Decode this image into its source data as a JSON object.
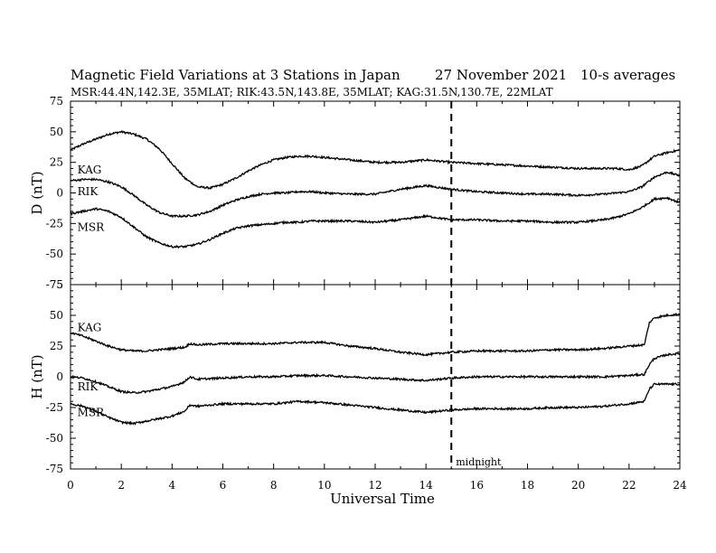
{
  "chart_data": {
    "type": "line",
    "title": "Magnetic Field Variations at 3 Stations in Japan",
    "date": "27 November 2021",
    "averaging": "10-s averages",
    "subtitle": "MSR:44.4N,142.3E, 35MLAT;  RIK:43.5N,143.8E, 35MLAT;  KAG:31.5N,130.7E, 22MLAT",
    "xlabel": "Universal Time",
    "xlim": [
      0,
      24
    ],
    "xticks": [
      "0",
      "2",
      "4",
      "6",
      "8",
      "10",
      "12",
      "14",
      "16",
      "18",
      "20",
      "22",
      "24"
    ],
    "annotation": {
      "x": 15,
      "text": "midnight"
    },
    "panels": [
      {
        "ylabel": "D (nT)",
        "ylim": [
          -75,
          75
        ],
        "yticks": [
          "75",
          "50",
          "25",
          "0",
          "-25",
          "-50",
          "-75"
        ],
        "series": [
          {
            "name": "KAG",
            "label_at": [
              0.2,
              19
            ],
            "x": [
              0,
              0.5,
              1,
              1.5,
              2,
              2.5,
              3,
              3.5,
              4,
              4.5,
              5,
              5.5,
              6,
              6.5,
              7,
              7.5,
              8,
              8.5,
              9,
              9.5,
              10,
              11,
              12,
              13,
              14,
              15,
              16,
              17,
              18,
              19,
              20,
              21,
              21.5,
              22,
              22.5,
              23,
              23.5,
              24
            ],
            "y": [
              35,
              40,
              44,
              48,
              50,
              48,
              44,
              36,
              24,
              12,
              5,
              4,
              7,
              12,
              18,
              23,
              27,
              29,
              30,
              30,
              29,
              27,
              25,
              25,
              27,
              25,
              24,
              23,
              22,
              21,
              20,
              20,
              20,
              19,
              22,
              30,
              33,
              35
            ]
          },
          {
            "name": "RIK",
            "label_at": [
              0.2,
              1
            ],
            "x": [
              0,
              0.5,
              1,
              1.5,
              2,
              2.5,
              3,
              3.5,
              4,
              4.5,
              5,
              5.5,
              6,
              6.5,
              7,
              7.5,
              8,
              8.5,
              9,
              9.5,
              10,
              11,
              12,
              13,
              14,
              15,
              16,
              17,
              18,
              19,
              20,
              21,
              21.5,
              22,
              22.5,
              23,
              23.5,
              24
            ],
            "y": [
              10,
              11,
              11,
              9,
              5,
              -2,
              -10,
              -16,
              -19,
              -19,
              -18,
              -15,
              -10,
              -6,
              -3,
              -1,
              0,
              0,
              1,
              1,
              0,
              -1,
              -1,
              3,
              6,
              3,
              1,
              0,
              -1,
              -1,
              -2,
              -1,
              0,
              1,
              5,
              13,
              17,
              14
            ]
          },
          {
            "name": "MSR",
            "label_at": [
              0.2,
              -28
            ],
            "x": [
              0,
              0.5,
              1,
              1.5,
              2,
              2.5,
              3,
              3.5,
              4,
              4.5,
              5,
              5.5,
              6,
              6.5,
              7,
              7.5,
              8,
              8.5,
              9,
              9.5,
              10,
              11,
              12,
              13,
              14,
              15,
              16,
              17,
              18,
              19,
              20,
              21,
              21.5,
              22,
              22.5,
              23,
              23.5,
              24
            ],
            "y": [
              -17,
              -15,
              -13,
              -15,
              -20,
              -28,
              -36,
              -41,
              -44,
              -44,
              -42,
              -38,
              -33,
              -29,
              -27,
              -26,
              -25,
              -24,
              -24,
              -23,
              -23,
              -23,
              -24,
              -22,
              -19,
              -22,
              -22,
              -23,
              -23,
              -24,
              -24,
              -22,
              -20,
              -17,
              -12,
              -5,
              -4,
              -8
            ]
          }
        ]
      },
      {
        "ylabel": "H (nT)",
        "ylim": [
          -75,
          75
        ],
        "yticks": [
          "75",
          "50",
          "25",
          "0",
          "-25",
          "-50",
          "-75"
        ],
        "series": [
          {
            "name": "KAG",
            "label_at": [
              0.2,
              40
            ],
            "x": [
              0,
              0.5,
              1,
              1.5,
              2,
              2.5,
              3,
              3.5,
              4,
              4.5,
              4.7,
              5,
              6,
              7,
              8,
              9,
              10,
              11,
              12,
              13,
              14,
              15,
              16,
              17,
              18,
              19,
              20,
              21,
              22,
              22.6,
              22.8,
              23,
              23.5,
              24
            ],
            "y": [
              36,
              33,
              29,
              25,
              22,
              21,
              21,
              22,
              23,
              24,
              27,
              26,
              27,
              27,
              27,
              28,
              28,
              25,
              23,
              20,
              18,
              20,
              21,
              21,
              21,
              22,
              22,
              23,
              25,
              26,
              44,
              48,
              50,
              51
            ]
          },
          {
            "name": "RIK",
            "label_at": [
              0.2,
              -8
            ],
            "x": [
              0,
              0.5,
              1,
              1.5,
              2,
              2.5,
              3,
              3.5,
              4,
              4.5,
              4.7,
              5,
              6,
              7,
              8,
              9,
              10,
              11,
              12,
              13,
              14,
              15,
              16,
              17,
              18,
              19,
              20,
              21,
              22,
              22.6,
              22.8,
              23,
              23.5,
              24
            ],
            "y": [
              0,
              -1,
              -4,
              -8,
              -12,
              -13,
              -12,
              -10,
              -8,
              -4,
              0,
              -2,
              -1,
              0,
              0,
              1,
              1,
              0,
              -1,
              -2,
              -3,
              -1,
              0,
              0,
              0,
              0,
              0,
              0,
              1,
              2,
              10,
              15,
              18,
              19
            ]
          },
          {
            "name": "MSR",
            "label_at": [
              0.2,
              -29
            ],
            "x": [
              0,
              0.5,
              1,
              1.5,
              2,
              2.5,
              3,
              3.5,
              4,
              4.5,
              4.7,
              5,
              6,
              7,
              8,
              9,
              10,
              11,
              12,
              13,
              14,
              15,
              16,
              17,
              18,
              19,
              20,
              21,
              22,
              22.6,
              22.8,
              23,
              23.5,
              24
            ],
            "y": [
              -22,
              -24,
              -28,
              -33,
              -37,
              -38,
              -36,
              -34,
              -32,
              -28,
              -23,
              -24,
              -22,
              -22,
              -22,
              -20,
              -21,
              -23,
              -25,
              -27,
              -29,
              -27,
              -26,
              -26,
              -26,
              -25,
              -25,
              -24,
              -22,
              -20,
              -10,
              -6,
              -6,
              -6
            ]
          }
        ]
      }
    ]
  }
}
